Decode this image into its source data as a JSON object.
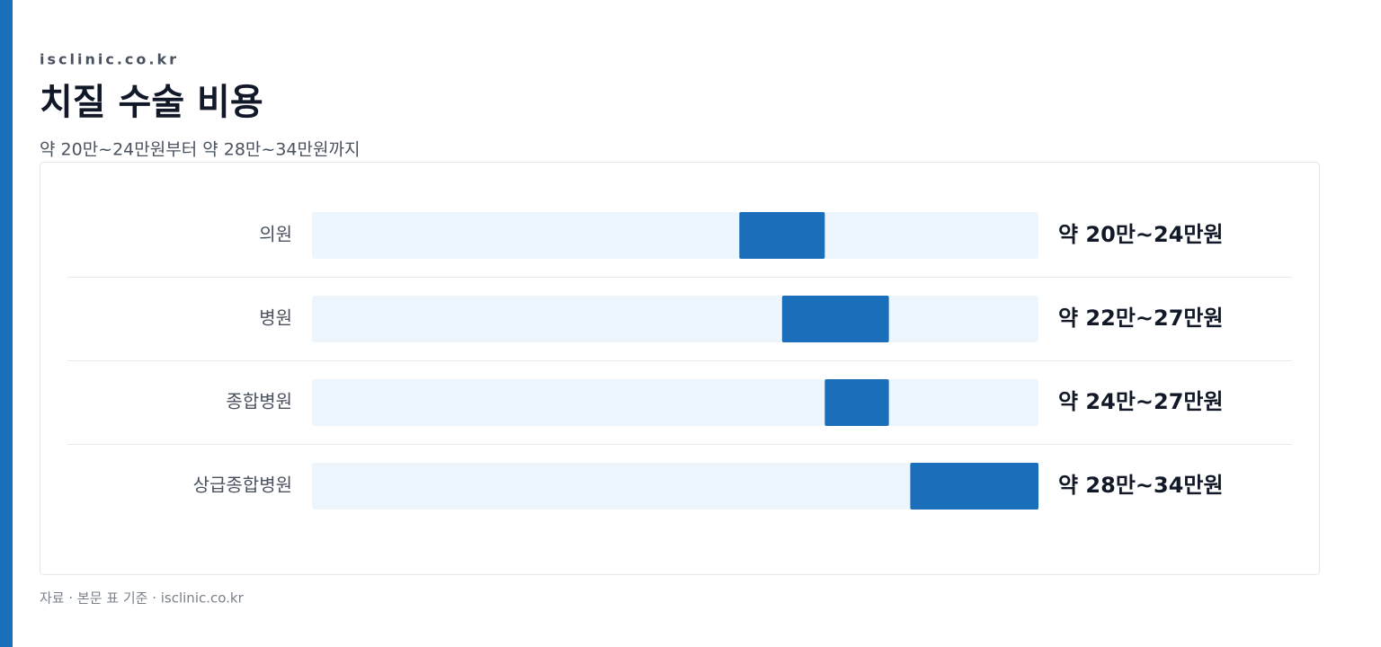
{
  "chart_data": {
    "type": "range-bar",
    "source": "isclinic.co.kr",
    "title": "치질 수술 비용",
    "subtitle": "약 20만~24만원부터 약 28만~34만원까지",
    "categories": [
      "의원",
      "병원",
      "종합병원",
      "상급종합병원"
    ],
    "low": [
      20,
      22,
      24,
      28
    ],
    "high": [
      24,
      27,
      27,
      34
    ],
    "value_labels": [
      "약 20만~24만원",
      "약 22만~27만원",
      "약 24만~27만원",
      "약 28만~34만원"
    ],
    "xlim": [
      0,
      34
    ],
    "color": "#1b6fba",
    "track_color": "#eef6fd",
    "footnote": "자료 · 본문 표 기준 · isclinic.co.kr"
  }
}
